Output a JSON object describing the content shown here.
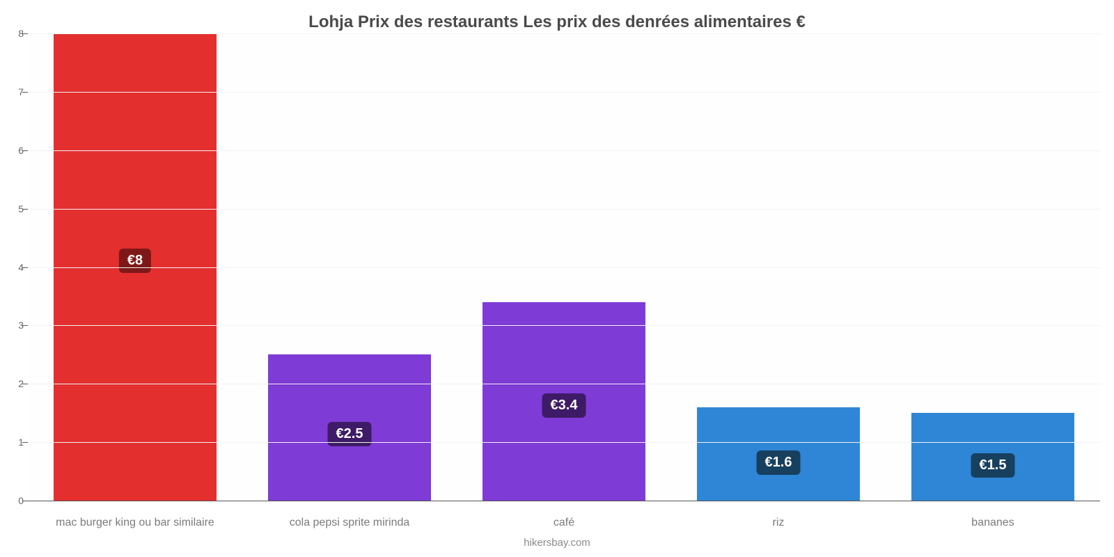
{
  "chart": {
    "type": "bar",
    "title": "Lohja Prix des restaurants Les prix des denrées alimentaires €",
    "title_fontsize": 24,
    "title_color": "#4a4a4a",
    "footer": "hikersbay.com",
    "footer_color": "#8a8a8a",
    "background_color": "#ffffff",
    "grid_color": "#f2f2f2",
    "axis_color": "#555555",
    "ylim": [
      0,
      8
    ],
    "ytick_step": 1,
    "bar_width_ratio": 0.76,
    "categories": [
      "mac burger king ou bar similaire",
      "cola pepsi sprite mirinda",
      "café",
      "riz",
      "bananes"
    ],
    "values": [
      8,
      2.5,
      3.4,
      1.6,
      1.5
    ],
    "value_labels": [
      "€8",
      "€2.5",
      "€3.4",
      "€1.6",
      "€1.5"
    ],
    "bar_colors": [
      "#e42f2f",
      "#7e3bd6",
      "#7e3bd6",
      "#2f86d6",
      "#2f86d6"
    ],
    "badge_bg_colors": [
      "#7e1818",
      "#3e1b66",
      "#3e1b66",
      "#17405f",
      "#17405f"
    ],
    "badge_text_color": "#ffffff",
    "badge_fontsize": 20,
    "xlabel_fontsize": 16,
    "xlabel_color": "#7a7a7a",
    "ylabel_fontsize": 14,
    "ylabel_color": "#666666"
  }
}
